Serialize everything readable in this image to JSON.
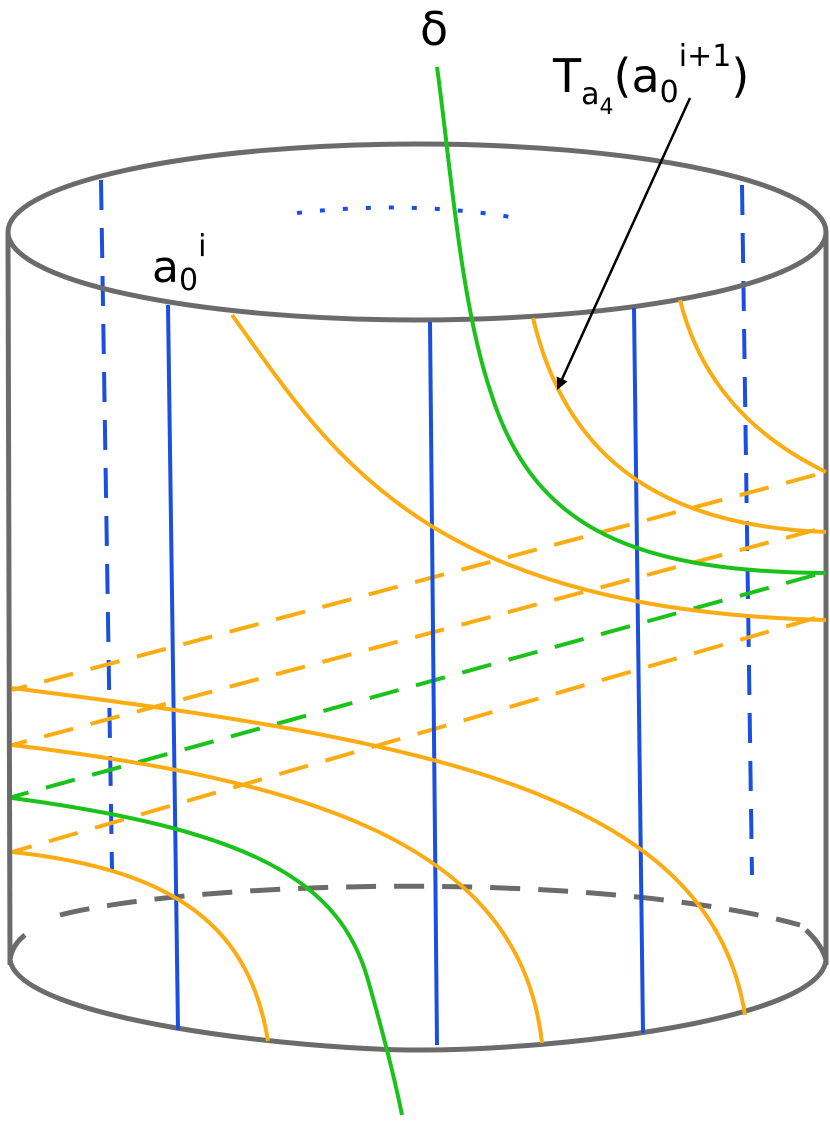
{
  "labels": {
    "delta": "δ",
    "twist": {
      "base": "T",
      "sub": "a",
      "subsub": "4",
      "open": "(",
      "arg": "a",
      "arg_sub": "0",
      "arg_sup": "i+1",
      "close": ")"
    },
    "curve": {
      "base": "a",
      "sub": "0",
      "sup": "i"
    }
  }
}
